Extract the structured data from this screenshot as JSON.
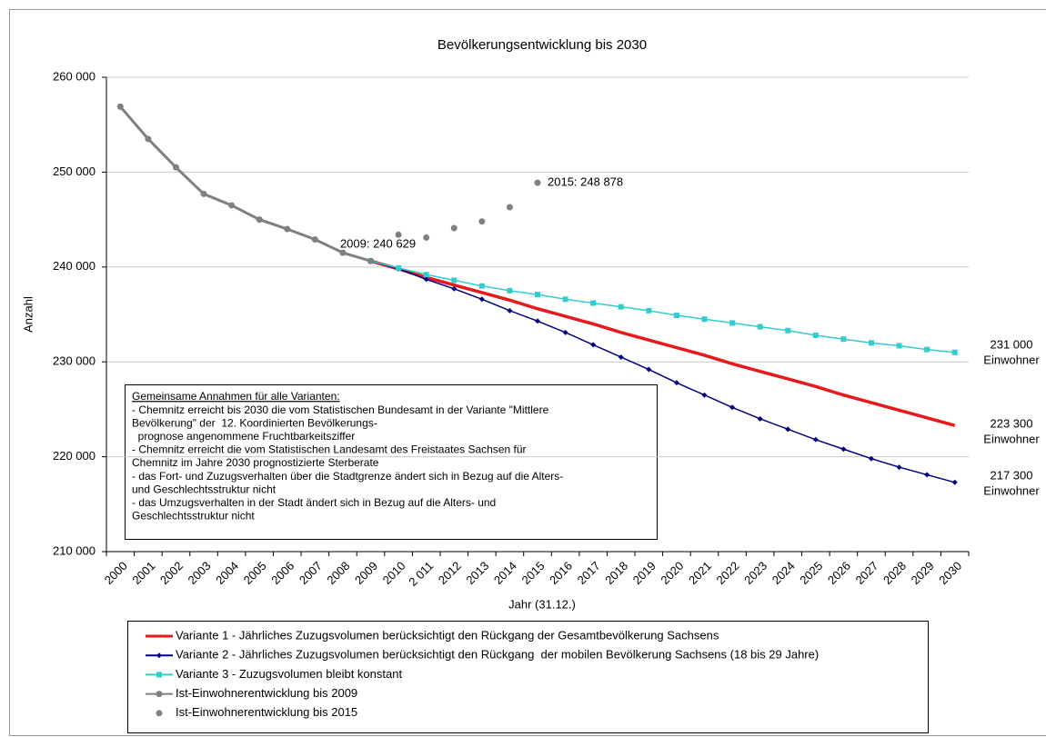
{
  "chart_data": {
    "type": "line",
    "title": "Bevölkerungsentwicklung bis 2030",
    "y_label": "Anzahl",
    "x_label": "Jahr (31.12.)",
    "categories": [
      "2000",
      "2001",
      "2002",
      "2003",
      "2004",
      "2005",
      "2006",
      "2007",
      "2008",
      "2009",
      "2010",
      "2 011",
      "2012",
      "2013",
      "2014",
      "2015",
      "2016",
      "2017",
      "2018",
      "2019",
      "2020",
      "2021",
      "2022",
      "2023",
      "2024",
      "2025",
      "2026",
      "2027",
      "2028",
      "2029",
      "2030"
    ],
    "ylim": [
      210000,
      260000
    ],
    "yticks": [
      {
        "value": 210000,
        "label": "210 000"
      },
      {
        "value": 220000,
        "label": "220 000"
      },
      {
        "value": 230000,
        "label": "230 000"
      },
      {
        "value": 240000,
        "label": "240 000"
      },
      {
        "value": 250000,
        "label": "250 000"
      },
      {
        "value": 260000,
        "label": "260 000"
      }
    ],
    "grid": true,
    "series": [
      {
        "name": "Variante 1 - Jährliches Zuzugsvolumen berücksichtigt den Rückgang der Gesamtbevölkerung Sachsens",
        "color": "#e8191c",
        "marker": "none",
        "line": true,
        "values": [
          null,
          null,
          null,
          null,
          null,
          null,
          null,
          null,
          null,
          240629,
          239800,
          238900,
          238100,
          237300,
          236500,
          235600,
          234800,
          234000,
          233100,
          232300,
          231500,
          230700,
          229800,
          229000,
          228200,
          227400,
          226500,
          225700,
          224900,
          224100,
          223300
        ]
      },
      {
        "name": "Variante 2 - Jährliches Zuzugsvolumen berücksichtigt den Rückgang  der mobilen Bevölkerung Sachsens (18 bis 29 Jahre)",
        "color": "#000080",
        "marker": "diamond",
        "line": true,
        "values": [
          null,
          null,
          null,
          null,
          null,
          null,
          null,
          null,
          null,
          240629,
          239800,
          238700,
          237700,
          236600,
          235400,
          234300,
          233100,
          231800,
          230500,
          229200,
          227800,
          226500,
          225200,
          224000,
          222900,
          221800,
          220800,
          219800,
          218900,
          218100,
          217300
        ]
      },
      {
        "name": "Variante 3 - Zuzugsvolumen bleibt konstant",
        "color": "#33cccc",
        "marker": "square",
        "line": true,
        "values": [
          null,
          null,
          null,
          null,
          null,
          null,
          null,
          null,
          null,
          240629,
          239900,
          239200,
          238600,
          238000,
          237500,
          237100,
          236600,
          236200,
          235800,
          235400,
          234900,
          234500,
          234100,
          233700,
          233300,
          232800,
          232400,
          232000,
          231700,
          231300,
          231000
        ]
      },
      {
        "name": "Ist-Einwohnerentwicklung bis 2009",
        "color": "#808080",
        "marker": "circle",
        "line": true,
        "values": [
          256900,
          253500,
          250500,
          247700,
          246500,
          245000,
          244000,
          242900,
          241500,
          240629,
          null,
          null,
          null,
          null,
          null,
          null,
          null,
          null,
          null,
          null,
          null,
          null,
          null,
          null,
          null,
          null,
          null,
          null,
          null,
          null,
          null
        ],
        "value_labels": [
          null,
          null,
          null,
          null,
          null,
          null,
          null,
          null,
          null,
          "2009: 240 629",
          null,
          null,
          null,
          null,
          null,
          null,
          null,
          null,
          null,
          null,
          null,
          null,
          null,
          null,
          null,
          null,
          null,
          null,
          null,
          null,
          null
        ]
      },
      {
        "name": "Ist-Einwohnerentwicklung bis 2015",
        "color": "#808080",
        "marker": "circle",
        "line": false,
        "values": [
          null,
          null,
          null,
          null,
          null,
          null,
          null,
          null,
          null,
          null,
          243400,
          243100,
          244100,
          244800,
          246300,
          248878,
          null,
          null,
          null,
          null,
          null,
          null,
          null,
          null,
          null,
          null,
          null,
          null,
          null,
          null,
          null
        ],
        "value_labels": [
          null,
          null,
          null,
          null,
          null,
          null,
          null,
          null,
          null,
          null,
          null,
          null,
          null,
          null,
          null,
          "2015: 248 878",
          null,
          null,
          null,
          null,
          null,
          null,
          null,
          null,
          null,
          null,
          null,
          null,
          null,
          null,
          null
        ]
      }
    ],
    "end_labels": [
      [
        "231 000",
        "Einwohner"
      ],
      [
        "223 300",
        "Einwohner"
      ],
      [
        "217 300",
        "Einwohner"
      ]
    ],
    "note": [
      "Gemeinsame Annahmen für alle Varianten:",
      "- Chemnitz erreicht bis 2030 die vom Statistischen Bundesamt in der Variante \"Mittlere",
      "Bevölkerung\" der  12. Koordinierten Bevölkerungs-",
      "  prognose angenommene Fruchtbarkeitsziffer",
      "- Chemnitz erreicht die vom Statistischen Landesamt des Freistaates Sachsen für",
      "Chemnitz im Jahre 2030 prognostizierte Sterberate",
      "- das Fort- und Zuzugsverhalten über die Stadtgrenze ändert sich in Bezug auf die Alters-",
      "und Geschlechtsstruktur nicht",
      "- das Umzugsverhalten in der Stadt ändert sich in Bezug auf die Alters- und",
      "Geschlechtsstruktur nicht"
    ]
  }
}
